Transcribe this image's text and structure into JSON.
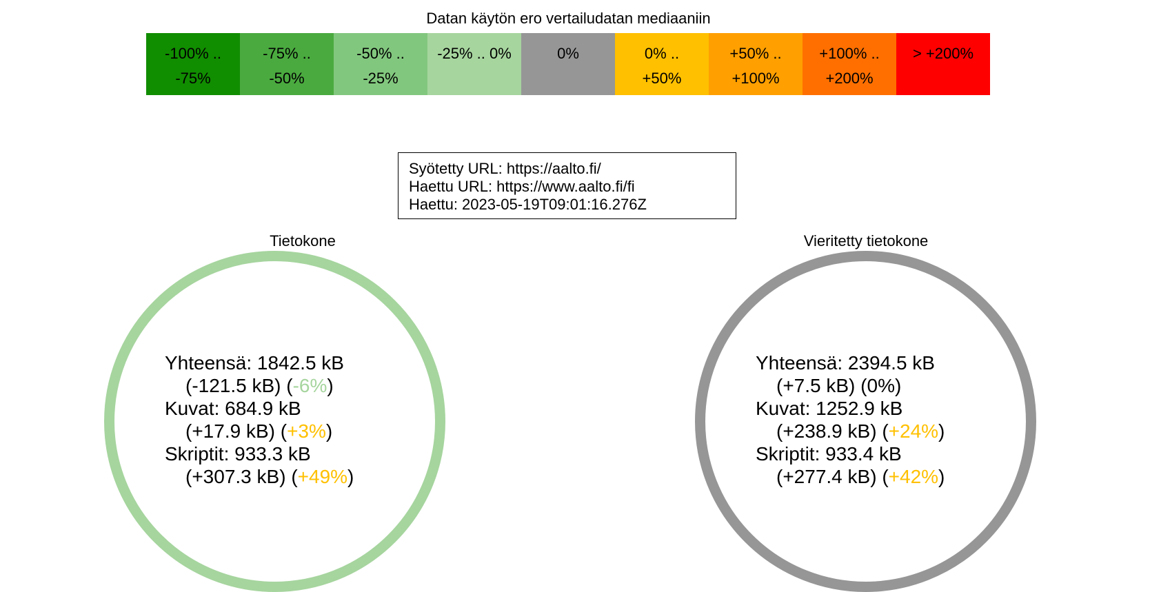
{
  "legend": {
    "title": "Datan käytön ero vertailudatan mediaaniin",
    "cells": [
      {
        "label": "-100% ..\n-75%",
        "color": "#118d00"
      },
      {
        "label": "-75% ..\n-50%",
        "color": "#4aaa3f"
      },
      {
        "label": "-50% ..\n-25%",
        "color": "#82c77e"
      },
      {
        "label": "-25% .. 0%",
        "color": "#a6d59e"
      },
      {
        "label": "0%",
        "color": "#969696"
      },
      {
        "label": "0% ..\n+50%",
        "color": "#ffc000"
      },
      {
        "label": "+50% ..\n+100%",
        "color": "#ff9f00"
      },
      {
        "label": "+100% ..\n+200%",
        "color": "#ff6f00"
      },
      {
        "label": "> +200%",
        "color": "#ff0000"
      }
    ]
  },
  "info": {
    "entered_url": "Syötetty URL: https://aalto.fi/",
    "fetched_url": "Haettu URL: https://www.aalto.fi/fi",
    "fetched_at": "Haettu: 2023-05-19T09:01:16.276Z"
  },
  "devices": [
    {
      "title": "Tietokone",
      "ring_color": "#a6d59e",
      "total": "Yhteensä: 1842.5 kB",
      "total_diff": "(-121.5 kB)",
      "total_pct_open": "(",
      "total_pct": "-6%",
      "total_pct_close": ")",
      "total_pct_color": "#a6d59e",
      "images": "Kuvat: 684.9 kB",
      "images_diff": "(+17.9 kB)",
      "images_pct_open": "(",
      "images_pct": "+3%",
      "images_pct_close": ")",
      "images_pct_color": "#ffc000",
      "scripts": "Skriptit: 933.3 kB",
      "scripts_diff": "(+307.3 kB)",
      "scripts_pct_open": "(",
      "scripts_pct": "+49%",
      "scripts_pct_close": ")",
      "scripts_pct_color": "#ffc000"
    },
    {
      "title": "Vieritetty tietokone",
      "ring_color": "#969696",
      "total": "Yhteensä: 2394.5 kB",
      "total_diff": "(+7.5 kB)",
      "total_pct_open": "(",
      "total_pct": "0%",
      "total_pct_close": ")",
      "total_pct_color": "#000000",
      "images": "Kuvat: 1252.9 kB",
      "images_diff": "(+238.9 kB)",
      "images_pct_open": "(",
      "images_pct": "+24%",
      "images_pct_close": ")",
      "images_pct_color": "#ffc000",
      "scripts": "Skriptit: 933.4 kB",
      "scripts_diff": "(+277.4 kB)",
      "scripts_pct_open": "(",
      "scripts_pct": "+42%",
      "scripts_pct_close": ")",
      "scripts_pct_color": "#ffc000"
    }
  ]
}
